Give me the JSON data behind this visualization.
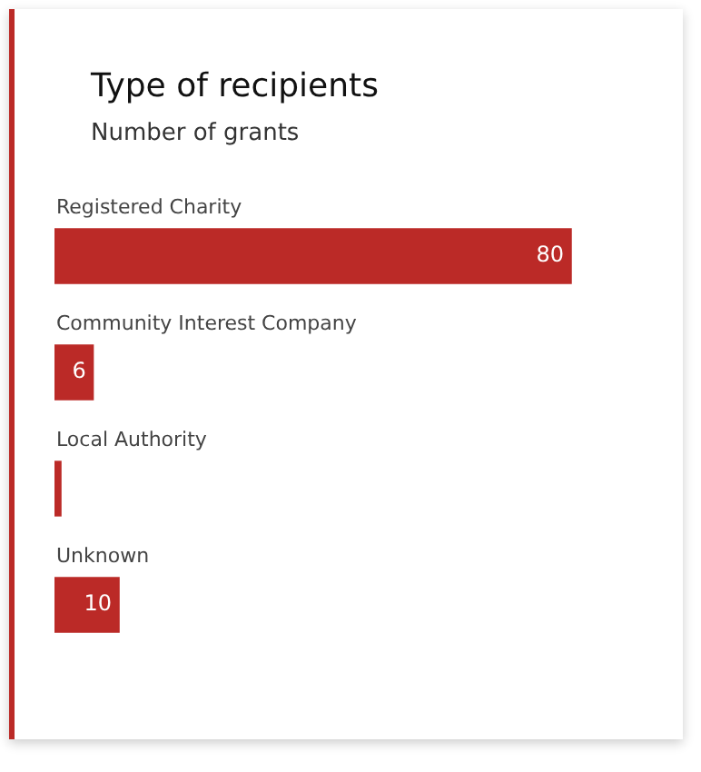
{
  "chart_data": {
    "type": "bar",
    "orientation": "horizontal",
    "title": "Type of recipients",
    "subtitle": "Number of grants",
    "categories": [
      "Registered Charity",
      "Community Interest Company",
      "Local Authority",
      "Unknown"
    ],
    "values": [
      80,
      6,
      1,
      10
    ],
    "value_labels": [
      "80",
      "6",
      null,
      "10"
    ],
    "color": "#bb2a27"
  }
}
